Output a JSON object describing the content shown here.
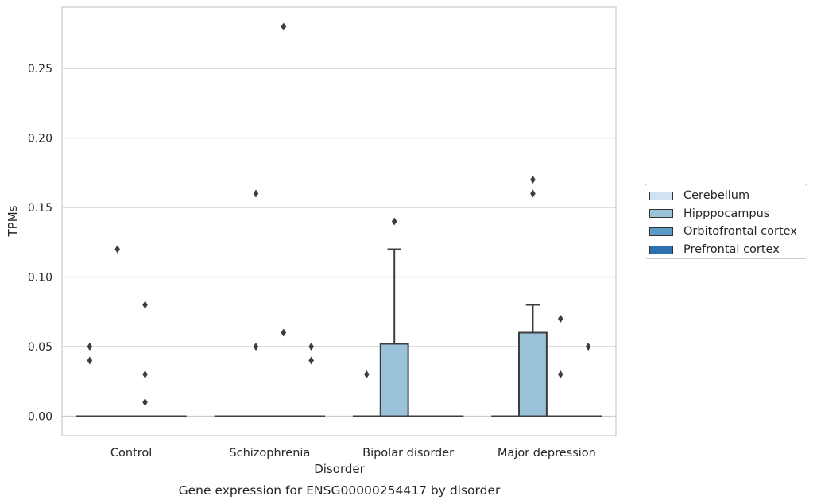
{
  "chart_data": {
    "type": "box",
    "title": "Gene expression for ENSG00000254417 by disorder",
    "xlabel": "Disorder",
    "ylabel": "TPMs",
    "categories": [
      "Control",
      "Schizophrenia",
      "Bipolar disorder",
      "Major depression"
    ],
    "ylim": [
      -0.014,
      0.294
    ],
    "yticks": [
      "0.00",
      "0.05",
      "0.10",
      "0.15",
      "0.20",
      "0.25"
    ],
    "grid": true,
    "legend_position": "right",
    "series": [
      {
        "name": "Cerebellum",
        "color": "#d1e2f2",
        "boxes": [
          {
            "category": "Control",
            "q1": 0,
            "median": 0,
            "q3": 0,
            "whisker_low": 0,
            "whisker_high": 0,
            "outliers": [
              0.04,
              0.05
            ]
          },
          {
            "category": "Schizophrenia",
            "q1": 0,
            "median": 0,
            "q3": 0,
            "whisker_low": 0,
            "whisker_high": 0,
            "outliers": []
          },
          {
            "category": "Bipolar disorder",
            "q1": 0,
            "median": 0,
            "q3": 0,
            "whisker_low": 0,
            "whisker_high": 0,
            "outliers": [
              0.03
            ]
          },
          {
            "category": "Major depression",
            "q1": 0,
            "median": 0,
            "q3": 0,
            "whisker_low": 0,
            "whisker_high": 0,
            "outliers": []
          }
        ]
      },
      {
        "name": "Hipppocampus",
        "color": "#9ac3d9",
        "boxes": [
          {
            "category": "Control",
            "q1": 0,
            "median": 0,
            "q3": 0,
            "whisker_low": 0,
            "whisker_high": 0,
            "outliers": [
              0.12
            ]
          },
          {
            "category": "Schizophrenia",
            "q1": 0,
            "median": 0,
            "q3": 0,
            "whisker_low": 0,
            "whisker_high": 0,
            "outliers": [
              0.05,
              0.16
            ]
          },
          {
            "category": "Bipolar disorder",
            "q1": 0,
            "median": 0,
            "q3": 0.052,
            "whisker_low": 0,
            "whisker_high": 0.12,
            "outliers": [
              0.14
            ]
          },
          {
            "category": "Major depression",
            "q1": 0,
            "median": 0,
            "q3": 0.06,
            "whisker_low": 0,
            "whisker_high": 0.08,
            "outliers": [
              0.16,
              0.17
            ]
          }
        ]
      },
      {
        "name": "Orbitofrontal cortex",
        "color": "#5a9ac6",
        "boxes": [
          {
            "category": "Control",
            "q1": 0,
            "median": 0,
            "q3": 0,
            "whisker_low": 0,
            "whisker_high": 0,
            "outliers": [
              0.01,
              0.03,
              0.08
            ]
          },
          {
            "category": "Schizophrenia",
            "q1": 0,
            "median": 0,
            "q3": 0,
            "whisker_low": 0,
            "whisker_high": 0,
            "outliers": [
              0.06,
              0.28
            ]
          },
          {
            "category": "Bipolar disorder",
            "q1": 0,
            "median": 0,
            "q3": 0,
            "whisker_low": 0,
            "whisker_high": 0,
            "outliers": []
          },
          {
            "category": "Major depression",
            "q1": 0,
            "median": 0,
            "q3": 0,
            "whisker_low": 0,
            "whisker_high": 0,
            "outliers": [
              0.03,
              0.07
            ]
          }
        ]
      },
      {
        "name": "Prefrontal cortex",
        "color": "#2c70ae",
        "boxes": [
          {
            "category": "Control",
            "q1": 0,
            "median": 0,
            "q3": 0,
            "whisker_low": 0,
            "whisker_high": 0,
            "outliers": []
          },
          {
            "category": "Schizophrenia",
            "q1": 0,
            "median": 0,
            "q3": 0,
            "whisker_low": 0,
            "whisker_high": 0,
            "outliers": [
              0.04,
              0.05
            ]
          },
          {
            "category": "Bipolar disorder",
            "q1": 0,
            "median": 0,
            "q3": 0,
            "whisker_low": 0,
            "whisker_high": 0,
            "outliers": []
          },
          {
            "category": "Major depression",
            "q1": 0,
            "median": 0,
            "q3": 0,
            "whisker_low": 0,
            "whisker_high": 0,
            "outliers": [
              0.05
            ]
          }
        ]
      }
    ]
  }
}
